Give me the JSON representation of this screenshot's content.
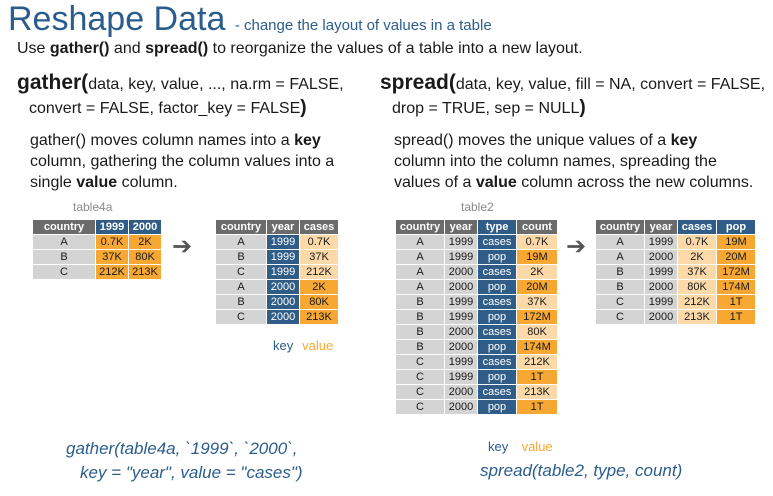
{
  "header": {
    "title": "Reshape Data",
    "subtitle": "- change the layout of values in a table"
  },
  "intro": {
    "part1": "Use ",
    "gather_fn": "gather()",
    "part2": " and ",
    "spread_fn": "spread()",
    "part3": " to reorganize the values of a table into a new layout."
  },
  "gather": {
    "fn_name": "gather(",
    "args_line1": "data, key, value, ..., na.rm = FALSE,",
    "args_line2": "convert = FALSE, factor_key = FALSE",
    "close_paren": ")",
    "desc": {
      "line1_a": "gather() moves column names into a ",
      "line1_b": "key",
      "line2": "column, gathering the column values into a",
      "line3_a": "single ",
      "line3_b": "value",
      "line3_c": " column."
    },
    "input_label": "table4a",
    "input_table": {
      "headers": [
        "country",
        "1999",
        "2000"
      ],
      "rows": [
        [
          "A",
          "0.7K",
          "2K"
        ],
        [
          "B",
          "37K",
          "80K"
        ],
        [
          "C",
          "212K",
          "213K"
        ]
      ]
    },
    "arrow": "➔",
    "output_table": {
      "headers": [
        "country",
        "year",
        "cases"
      ],
      "rows": [
        [
          "A",
          "1999",
          "0.7K"
        ],
        [
          "B",
          "1999",
          "37K"
        ],
        [
          "C",
          "1999",
          "212K"
        ],
        [
          "A",
          "2000",
          "2K"
        ],
        [
          "B",
          "2000",
          "80K"
        ],
        [
          "C",
          "2000",
          "213K"
        ]
      ]
    },
    "key_label": "key",
    "value_label": "value",
    "code_line1": "gather(table4a, `1999`, `2000`,",
    "code_line2": "key = \"year\", value = \"cases\")"
  },
  "spread": {
    "fn_name": "spread(",
    "args_line1": "data, key, value, fill = NA, convert = FALSE,",
    "args_line2": "drop = TRUE, sep = NULL",
    "close_paren": ")",
    "desc": {
      "line1_a": "spread() moves the unique values of a ",
      "line1_b": "key",
      "line2": "column into the column names, spreading the",
      "line3_a": "values of a ",
      "line3_b": "value",
      "line3_c": " column across the new columns."
    },
    "input_label": "table2",
    "input_table": {
      "headers": [
        "country",
        "year",
        "type",
        "count"
      ],
      "rows": [
        [
          "A",
          "1999",
          "cases",
          "0.7K"
        ],
        [
          "A",
          "1999",
          "pop",
          "19M"
        ],
        [
          "A",
          "2000",
          "cases",
          "2K"
        ],
        [
          "A",
          "2000",
          "pop",
          "20M"
        ],
        [
          "B",
          "1999",
          "cases",
          "37K"
        ],
        [
          "B",
          "1999",
          "pop",
          "172M"
        ],
        [
          "B",
          "2000",
          "cases",
          "80K"
        ],
        [
          "B",
          "2000",
          "pop",
          "174M"
        ],
        [
          "C",
          "1999",
          "cases",
          "212K"
        ],
        [
          "C",
          "1999",
          "pop",
          "1T"
        ],
        [
          "C",
          "2000",
          "cases",
          "213K"
        ],
        [
          "C",
          "2000",
          "pop",
          "1T"
        ]
      ]
    },
    "arrow": "➔",
    "output_table": {
      "headers": [
        "country",
        "year",
        "cases",
        "pop"
      ],
      "rows": [
        [
          "A",
          "1999",
          "0.7K",
          "19M"
        ],
        [
          "A",
          "2000",
          "2K",
          "20M"
        ],
        [
          "B",
          "1999",
          "37K",
          "172M"
        ],
        [
          "B",
          "2000",
          "80K",
          "174M"
        ],
        [
          "C",
          "1999",
          "212K",
          "1T"
        ],
        [
          "C",
          "2000",
          "213K",
          "1T"
        ]
      ]
    },
    "key_label": "key",
    "value_label": "value",
    "code_line1": "spread(table2, type, count)"
  },
  "colors": {
    "title_blue": "#2b5d8c",
    "key_blue": "#2f5d88",
    "value_orange": "#f7a833",
    "value_light": "#fcd9a8",
    "header_gray": "#6b6b6b",
    "cell_gray": "#d4d4d4"
  }
}
